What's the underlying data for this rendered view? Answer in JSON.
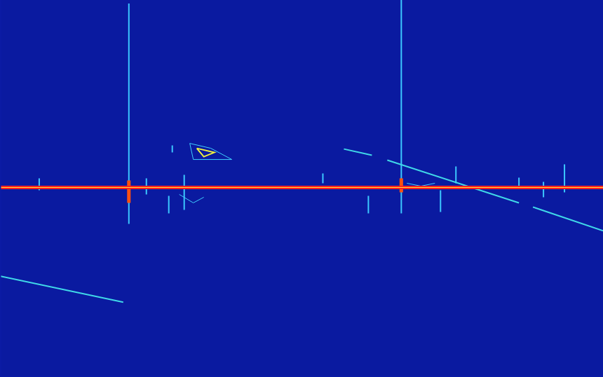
{
  "chart_data": {
    "type": "spectrogram",
    "tick_labels": false,
    "xlim": [
      0,
      860
    ],
    "ylim": [
      0,
      538
    ],
    "series": [
      {
        "type": "line",
        "color": "#3cc8ff",
        "line_style": "solid",
        "x": [
          183,
          183,
          183,
          572,
          572,
          572,
          55,
          55,
          55,
          245,
          245,
          245,
          262,
          262,
          262,
          628,
          628,
          628,
          650,
          650,
          650,
          805,
          805,
          805,
          775,
          775,
          775,
          740,
          740,
          740,
          460,
          460,
          460,
          525,
          525,
          525,
          208,
          208,
          208,
          240,
          240,
          240
        ],
        "values": [
          5,
          320,
          null,
          0,
          305,
          null,
          255,
          272,
          null,
          208,
          218,
          null,
          250,
          300,
          null,
          272,
          303,
          null,
          238,
          262,
          null,
          235,
          275,
          null,
          260,
          282,
          null,
          254,
          266,
          null,
          248,
          262,
          null,
          280,
          305,
          null,
          255,
          278,
          null,
          280,
          305,
          null
        ]
      },
      {
        "type": "line",
        "color": "#40d8e8",
        "line_style": "solid",
        "x": [
          490,
          530,
          530,
          552,
          740,
          740,
          760,
          860,
          860,
          0,
          175
        ],
        "values": [
          213,
          222,
          null,
          229,
          290,
          null,
          296,
          330,
          null,
          395,
          432
        ]
      },
      {
        "type": "line",
        "color": "#40d0ff",
        "line_style": "thin",
        "x": [
          270,
          300,
          330,
          275,
          270,
          270,
          255,
          275,
          290,
          290,
          580,
          600,
          620
        ],
        "values": [
          205,
          212,
          228,
          228,
          205,
          null,
          278,
          290,
          282,
          null,
          262,
          266,
          262
        ]
      },
      {
        "type": "line",
        "color": "#f0f040",
        "line_style": "solid",
        "x": [
          280,
          305,
          290,
          280
        ],
        "values": [
          212,
          218,
          224,
          212
        ]
      },
      {
        "type": "line",
        "color": "#ff5010",
        "line_style": "thick",
        "x": [
          183,
          183,
          183,
          572,
          572
        ],
        "values": [
          258,
          290,
          null,
          255,
          275
        ]
      },
      {
        "type": "line",
        "color": "#ff2020",
        "line_style": "thick",
        "x": [
          0,
          860
        ],
        "values": [
          268,
          268
        ]
      },
      {
        "type": "line",
        "color": "#ffe040",
        "line_style": "thin",
        "x": [
          0,
          860
        ],
        "values": [
          268,
          268
        ]
      }
    ]
  }
}
